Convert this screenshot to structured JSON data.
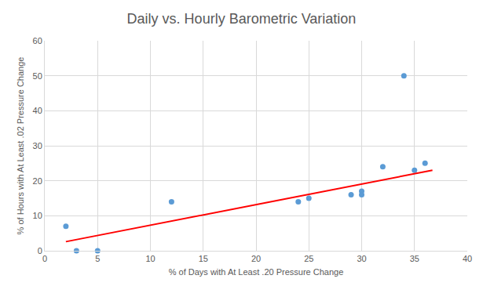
{
  "chart_data": {
    "type": "scatter",
    "title": "Daily vs. Hourly Barometric Variation",
    "x_label": "% of Days with At Least .20 Pressure Change",
    "y_label": "% of Hours with At Least .02 Pressure Change",
    "series": [
      {
        "type": "scatter",
        "color": "#5b9bd5",
        "marker": "circle",
        "x": [
          2,
          3,
          5,
          12,
          24,
          25,
          29,
          30,
          30,
          32,
          34,
          35,
          36
        ],
        "values": [
          7,
          0,
          0,
          14,
          14,
          15,
          16,
          17,
          16,
          24,
          50,
          23,
          25
        ]
      },
      {
        "type": "line",
        "color": "#ff0000",
        "line_style": "solid",
        "x": [
          2,
          36.7
        ],
        "values": [
          2.6,
          23
        ]
      }
    ],
    "xlim": [
      0,
      40
    ],
    "xticks": [
      0,
      5,
      10,
      15,
      20,
      25,
      30,
      35,
      40
    ],
    "ylim": [
      0,
      60
    ],
    "yticks": [
      0,
      10,
      20,
      30,
      40,
      50,
      60
    ],
    "grid": true
  }
}
